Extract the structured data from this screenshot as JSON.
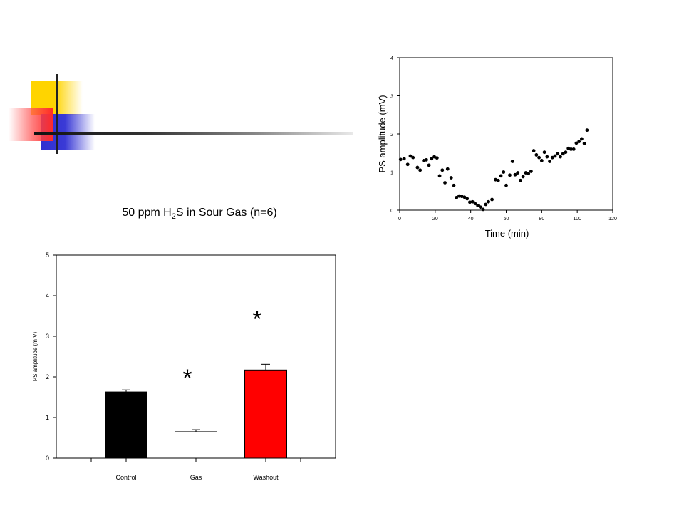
{
  "decoration": {
    "colors": [
      "#ffd400",
      "#2f2fd0",
      "#ff2a2a"
    ]
  },
  "chart_data": [
    {
      "type": "scatter",
      "title": "",
      "xlabel": "Time (min)",
      "ylabel": "PS amplitude (mV)",
      "xlim": [
        0,
        120
      ],
      "ylim": [
        0,
        4
      ],
      "xticks": [
        "0",
        "20",
        "40",
        "60",
        "80",
        "100",
        "120"
      ],
      "yticks": [
        "0",
        "1",
        "2",
        "3",
        "4"
      ],
      "grid": false,
      "marker_color": "#000000",
      "points": [
        [
          0.5,
          1.33
        ],
        [
          2.5,
          1.35
        ],
        [
          4.5,
          1.2
        ],
        [
          6,
          1.42
        ],
        [
          7.5,
          1.38
        ],
        [
          10,
          1.12
        ],
        [
          11.5,
          1.05
        ],
        [
          13.5,
          1.3
        ],
        [
          15,
          1.32
        ],
        [
          16.5,
          1.18
        ],
        [
          18,
          1.35
        ],
        [
          19.5,
          1.4
        ],
        [
          21,
          1.37
        ],
        [
          22.5,
          0.9
        ],
        [
          24,
          1.05
        ],
        [
          25.5,
          0.72
        ],
        [
          27,
          1.08
        ],
        [
          29,
          0.85
        ],
        [
          30.5,
          0.65
        ],
        [
          32,
          0.33
        ],
        [
          33.5,
          0.37
        ],
        [
          35,
          0.36
        ],
        [
          36.5,
          0.34
        ],
        [
          38,
          0.3
        ],
        [
          39.5,
          0.21
        ],
        [
          41,
          0.22
        ],
        [
          42.5,
          0.17
        ],
        [
          44,
          0.12
        ],
        [
          45.5,
          0.08
        ],
        [
          47,
          0.02
        ],
        [
          48.5,
          0.15
        ],
        [
          50,
          0.22
        ],
        [
          52,
          0.28
        ],
        [
          54,
          0.8
        ],
        [
          55.5,
          0.78
        ],
        [
          57,
          0.9
        ],
        [
          58.5,
          1.0
        ],
        [
          60,
          0.65
        ],
        [
          62,
          0.92
        ],
        [
          63.5,
          1.28
        ],
        [
          65,
          0.93
        ],
        [
          66.5,
          0.98
        ],
        [
          68,
          0.78
        ],
        [
          69.5,
          0.88
        ],
        [
          71,
          0.98
        ],
        [
          72.5,
          0.96
        ],
        [
          74,
          1.02
        ],
        [
          75.5,
          1.56
        ],
        [
          77,
          1.45
        ],
        [
          78.5,
          1.38
        ],
        [
          80,
          1.3
        ],
        [
          81.5,
          1.52
        ],
        [
          83,
          1.4
        ],
        [
          84.5,
          1.28
        ],
        [
          86,
          1.38
        ],
        [
          87.5,
          1.42
        ],
        [
          89,
          1.48
        ],
        [
          90.5,
          1.4
        ],
        [
          92,
          1.48
        ],
        [
          93.5,
          1.52
        ],
        [
          95,
          1.62
        ],
        [
          96.5,
          1.6
        ],
        [
          98,
          1.6
        ],
        [
          99.5,
          1.76
        ],
        [
          101,
          1.8
        ],
        [
          102.5,
          1.87
        ],
        [
          104,
          1.75
        ],
        [
          105.5,
          2.1
        ]
      ]
    },
    {
      "type": "bar",
      "title_main": "50 ppm H",
      "title_sub": "2",
      "title_rest": "S in Sour Gas (n=6)",
      "xlabel": "",
      "ylabel": "PS amplitude (m V)",
      "ylim": [
        0,
        5
      ],
      "yticks": [
        "0",
        "1",
        "2",
        "3",
        "4",
        "5"
      ],
      "categories": [
        "Control",
        "Gas",
        "Washout"
      ],
      "values": [
        1.63,
        0.65,
        2.17
      ],
      "errors": [
        0.05,
        0.05,
        0.14
      ],
      "colors": [
        "#000000",
        "#ffffff",
        "#ff0000"
      ],
      "annotations": [
        {
          "text": "*",
          "category": "Gas",
          "y": 2.05
        },
        {
          "text": "*",
          "category": "Washout",
          "y": 3.5
        }
      ]
    }
  ]
}
